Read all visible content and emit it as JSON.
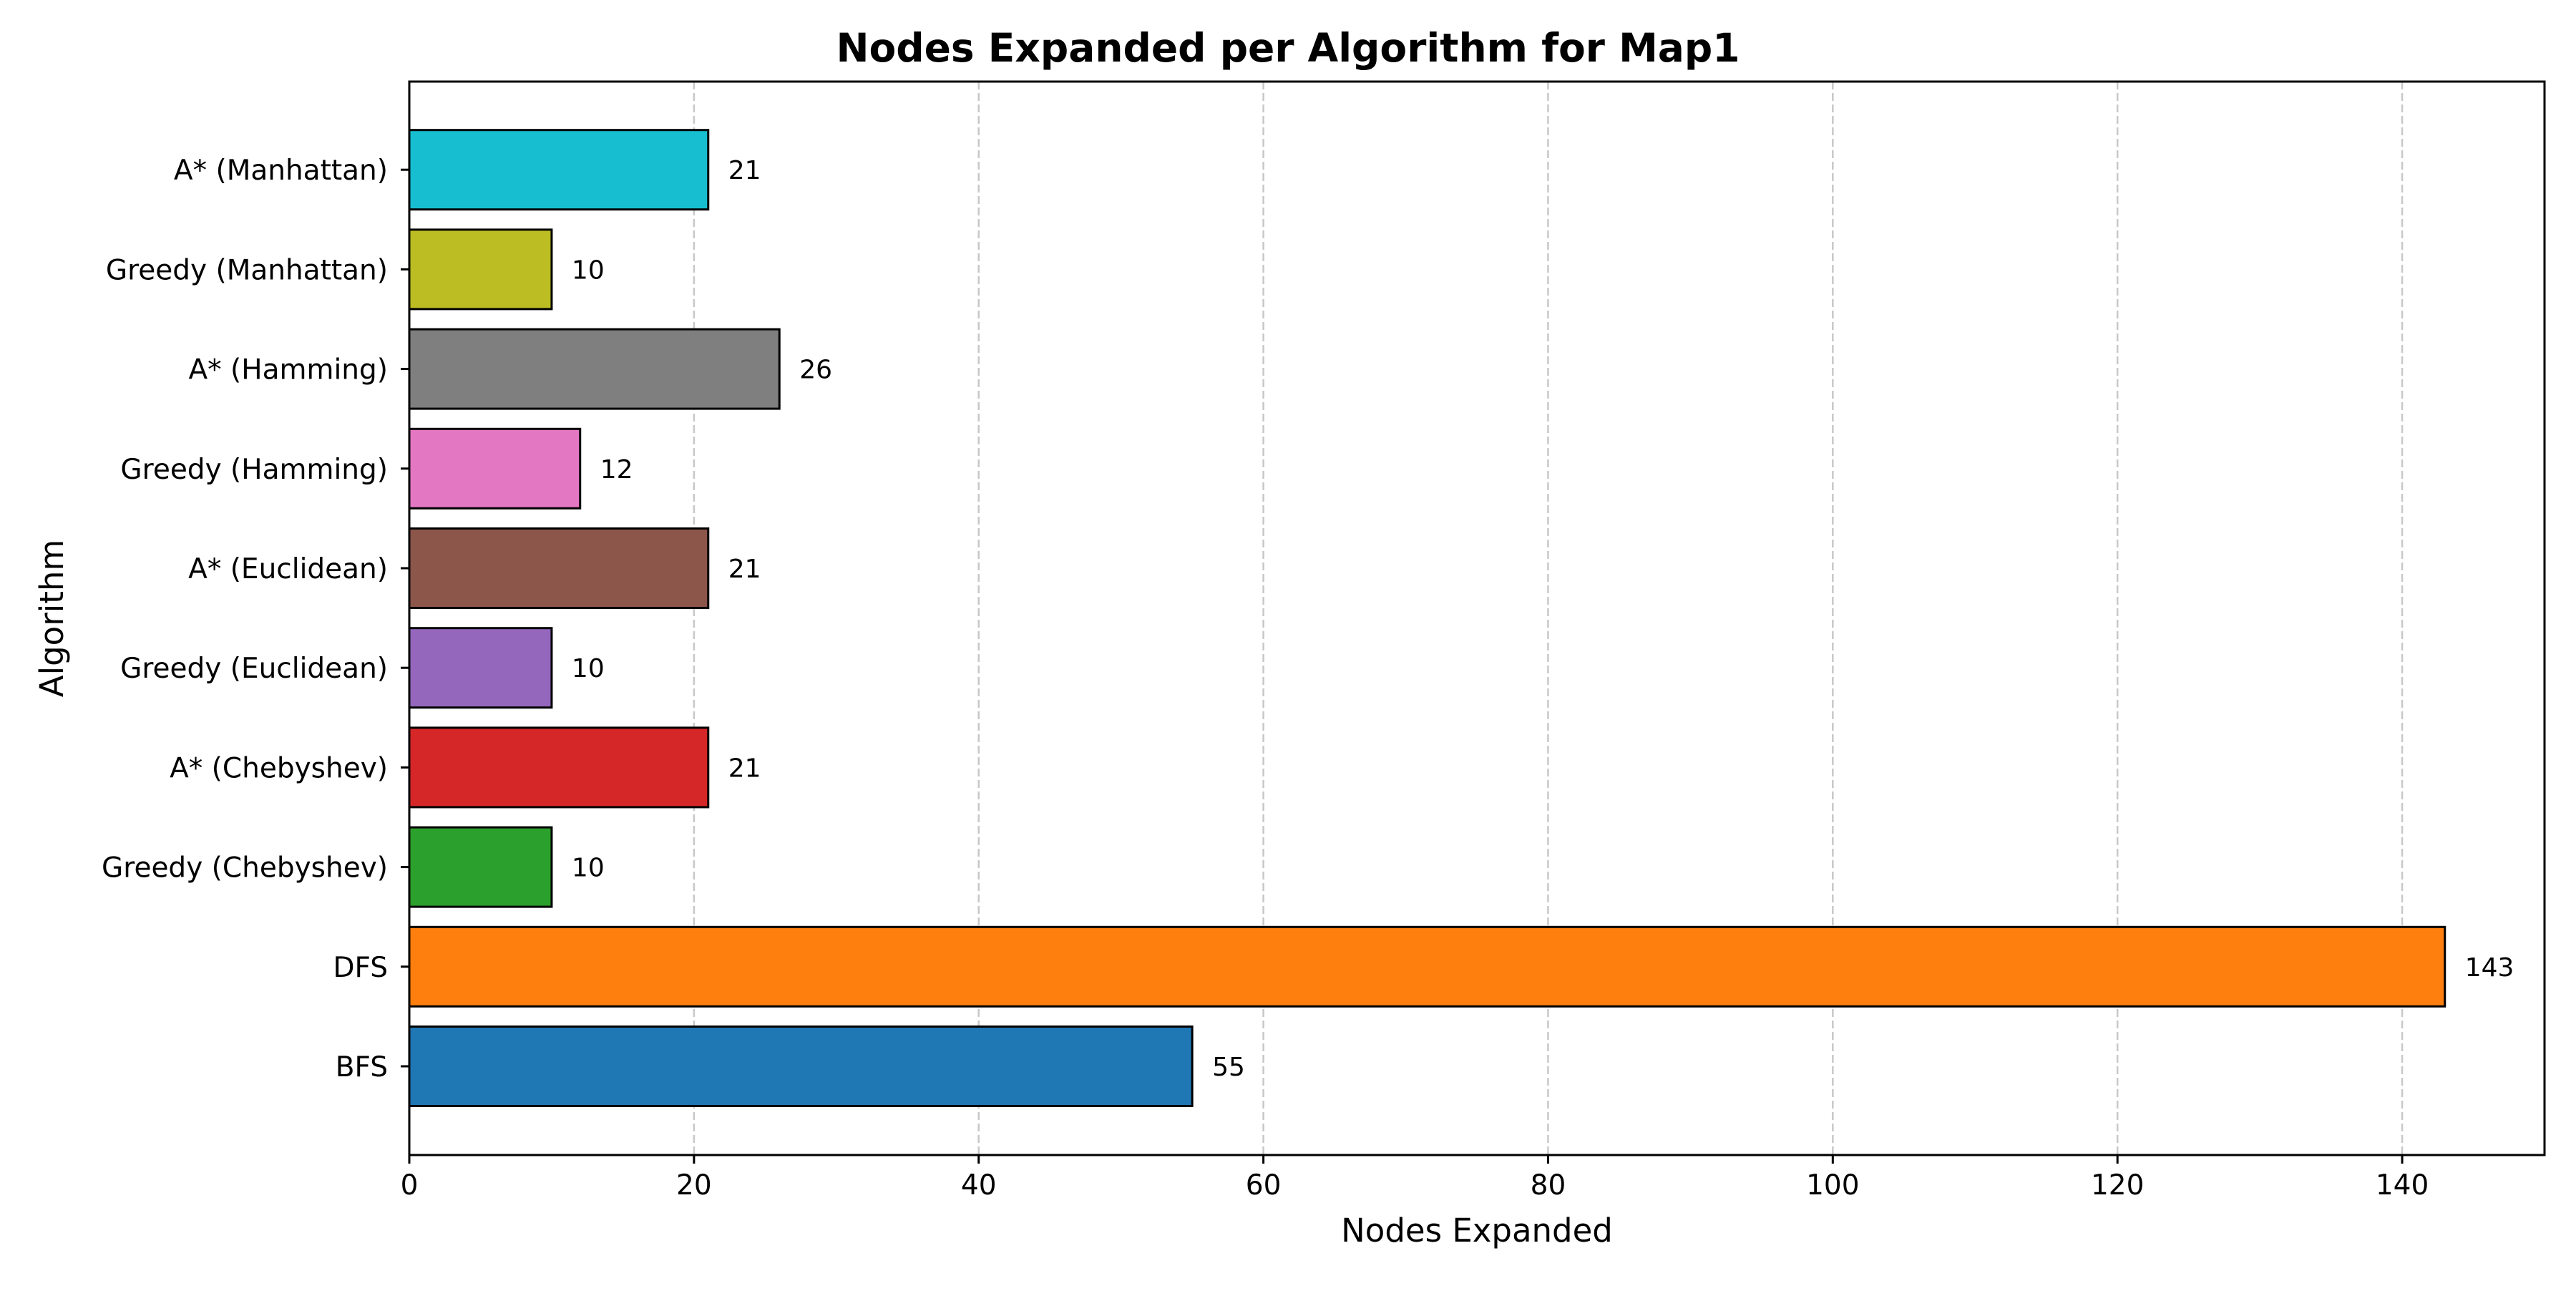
{
  "chart_data": {
    "type": "bar",
    "orientation": "horizontal",
    "title": "Nodes Expanded per Algorithm for Map1",
    "xlabel": "Nodes Expanded",
    "ylabel": "Algorithm",
    "xlim": [
      0,
      150
    ],
    "x_ticks": [
      0,
      20,
      40,
      60,
      80,
      100,
      120,
      140
    ],
    "grid": "x-dashed",
    "categories": [
      "BFS",
      "DFS",
      "Greedy (Chebyshev)",
      "A* (Chebyshev)",
      "Greedy (Euclidean)",
      "A* (Euclidean)",
      "Greedy (Hamming)",
      "A* (Hamming)",
      "Greedy (Manhattan)",
      "A* (Manhattan)"
    ],
    "values": [
      55,
      143,
      10,
      21,
      10,
      21,
      12,
      26,
      10,
      21
    ],
    "colors": [
      "#1f77b4",
      "#ff7f0e",
      "#2ca02c",
      "#d62728",
      "#9467bd",
      "#8c564b",
      "#e377c2",
      "#7f7f7f",
      "#bcbd22",
      "#17becf"
    ],
    "data_labels": [
      "55",
      "143",
      "10",
      "21",
      "10",
      "21",
      "12",
      "26",
      "10",
      "21"
    ]
  }
}
